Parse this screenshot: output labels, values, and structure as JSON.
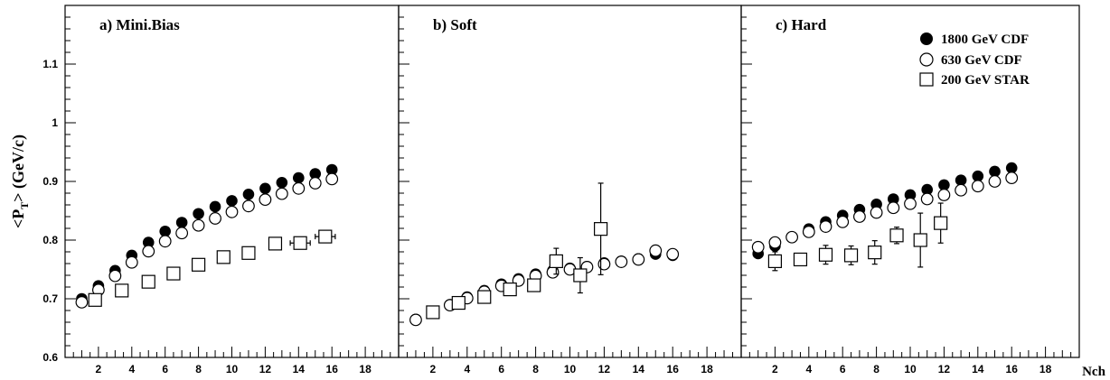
{
  "chart_data": {
    "type": "scatter",
    "ylabel": "<P_T> (GeV/c)",
    "ylabel_main": "<P",
    "ylabel_sub": "T",
    "ylabel_rest": "> (GeV/c)",
    "xlabel": "Nch",
    "ylim": [
      0.6,
      1.2
    ],
    "xlim": [
      0,
      20
    ],
    "yticks": [
      0.6,
      0.7,
      0.8,
      0.9,
      1.0,
      1.1
    ],
    "ytick_labels": [
      "0.6",
      "0.7",
      "0.8",
      "0.9",
      "1",
      "1.1"
    ],
    "xticks": [
      2,
      4,
      6,
      8,
      10,
      12,
      14,
      16,
      18
    ],
    "xtick_labels": [
      "2",
      "4",
      "6",
      "8",
      "10",
      "12",
      "14",
      "16",
      "18"
    ],
    "grid": false,
    "legend": {
      "placement": "top-right",
      "entries": [
        {
          "label": "1800 GeV CDF",
          "marker": "filled-circle"
        },
        {
          "label": "630 GeV CDF",
          "marker": "open-circle"
        },
        {
          "label": "200 GeV STAR",
          "marker": "open-square"
        }
      ]
    },
    "panels": [
      {
        "title": "a) Mini.Bias",
        "series": [
          {
            "name": "1800 GeV CDF",
            "marker": "filled-circle",
            "x": [
              1,
              2,
              3,
              4,
              5,
              6,
              7,
              8,
              9,
              10,
              11,
              12,
              13,
              14,
              15,
              16
            ],
            "y": [
              0.7,
              0.722,
              0.748,
              0.774,
              0.796,
              0.815,
              0.83,
              0.845,
              0.857,
              0.867,
              0.878,
              0.888,
              0.898,
              0.906,
              0.913,
              0.92
            ]
          },
          {
            "name": "630 GeV CDF",
            "marker": "open-circle",
            "x": [
              1,
              2,
              3,
              4,
              5,
              6,
              7,
              8,
              9,
              10,
              11,
              12,
              13,
              14,
              15,
              16
            ],
            "y": [
              0.694,
              0.715,
              0.739,
              0.762,
              0.781,
              0.798,
              0.812,
              0.825,
              0.837,
              0.848,
              0.858,
              0.869,
              0.879,
              0.888,
              0.897,
              0.904
            ]
          },
          {
            "name": "200 GeV STAR",
            "marker": "open-square",
            "x": [
              1.8,
              3.4,
              5.0,
              6.5,
              8.0,
              9.5,
              11.0,
              12.6,
              14.1,
              15.6
            ],
            "y": [
              0.698,
              0.714,
              0.729,
              0.743,
              0.758,
              0.771,
              0.778,
              0.794,
              0.795,
              0.806
            ],
            "xerr": [
              0,
              0,
              0,
              0,
              0,
              0,
              0,
              0,
              0.6,
              0.6
            ],
            "yerr": [
              0,
              0,
              0,
              0,
              0,
              0,
              0,
              0,
              0,
              0
            ]
          }
        ]
      },
      {
        "title": "b) Soft",
        "series": [
          {
            "name": "1800 GeV CDF",
            "marker": "filled-circle",
            "x": [
              1,
              2,
              3,
              4,
              5,
              6,
              7,
              8,
              9,
              10,
              11,
              12,
              13,
              14,
              15,
              16
            ],
            "y": [
              0.665,
              0.677,
              0.69,
              0.703,
              0.714,
              0.725,
              0.734,
              0.742,
              0.748,
              0.752,
              0.755,
              0.761,
              0.764,
              0.768,
              0.776,
              0.774
            ]
          },
          {
            "name": "630 GeV CDF",
            "marker": "open-circle",
            "x": [
              1,
              2,
              3,
              4,
              5,
              6,
              7,
              8,
              9,
              10,
              11,
              12,
              13,
              14,
              15,
              16
            ],
            "y": [
              0.664,
              0.676,
              0.689,
              0.701,
              0.712,
              0.722,
              0.731,
              0.739,
              0.745,
              0.75,
              0.754,
              0.759,
              0.763,
              0.767,
              0.782,
              0.776
            ]
          },
          {
            "name": "200 GeV STAR",
            "marker": "open-square",
            "x": [
              2.0,
              3.5,
              5.0,
              6.5,
              7.9,
              9.2,
              10.6,
              11.8
            ],
            "y": [
              0.677,
              0.693,
              0.703,
              0.716,
              0.723,
              0.764,
              0.74,
              0.819
            ],
            "xerr": [
              0,
              0,
              0,
              0,
              0,
              0,
              0,
              0
            ],
            "yerr": [
              0,
              0,
              0,
              0,
              0,
              0.022,
              0.03,
              0.078
            ]
          }
        ]
      },
      {
        "title": "c) Hard",
        "series": [
          {
            "name": "1800 GeV CDF",
            "marker": "filled-circle",
            "x": [
              1,
              2,
              3,
              4,
              5,
              6,
              7,
              8,
              9,
              10,
              11,
              12,
              13,
              14,
              15,
              16
            ],
            "y": [
              0.777,
              0.79,
              0.805,
              0.819,
              0.831,
              0.842,
              0.852,
              0.861,
              0.87,
              0.877,
              0.886,
              0.894,
              0.902,
              0.909,
              0.917,
              0.923
            ]
          },
          {
            "name": "630 GeV CDF",
            "marker": "open-circle",
            "x": [
              1,
              2,
              3,
              4,
              5,
              6,
              7,
              8,
              9,
              10,
              11,
              12,
              13,
              14,
              15,
              16
            ],
            "y": [
              0.788,
              0.796,
              0.805,
              0.814,
              0.823,
              0.831,
              0.84,
              0.847,
              0.855,
              0.862,
              0.87,
              0.877,
              0.885,
              0.892,
              0.9,
              0.906
            ]
          },
          {
            "name": "200 GeV STAR",
            "marker": "open-square",
            "x": [
              2.0,
              3.5,
              5.0,
              6.5,
              7.9,
              9.2,
              10.6,
              11.8
            ],
            "y": [
              0.764,
              0.767,
              0.775,
              0.774,
              0.779,
              0.808,
              0.8,
              0.829
            ],
            "xerr": [
              0,
              0,
              0,
              0,
              0,
              0,
              0,
              0
            ],
            "yerr": [
              0.016,
              0.01,
              0.016,
              0.016,
              0.02,
              0.014,
              0.046,
              0.034
            ]
          }
        ]
      }
    ]
  }
}
